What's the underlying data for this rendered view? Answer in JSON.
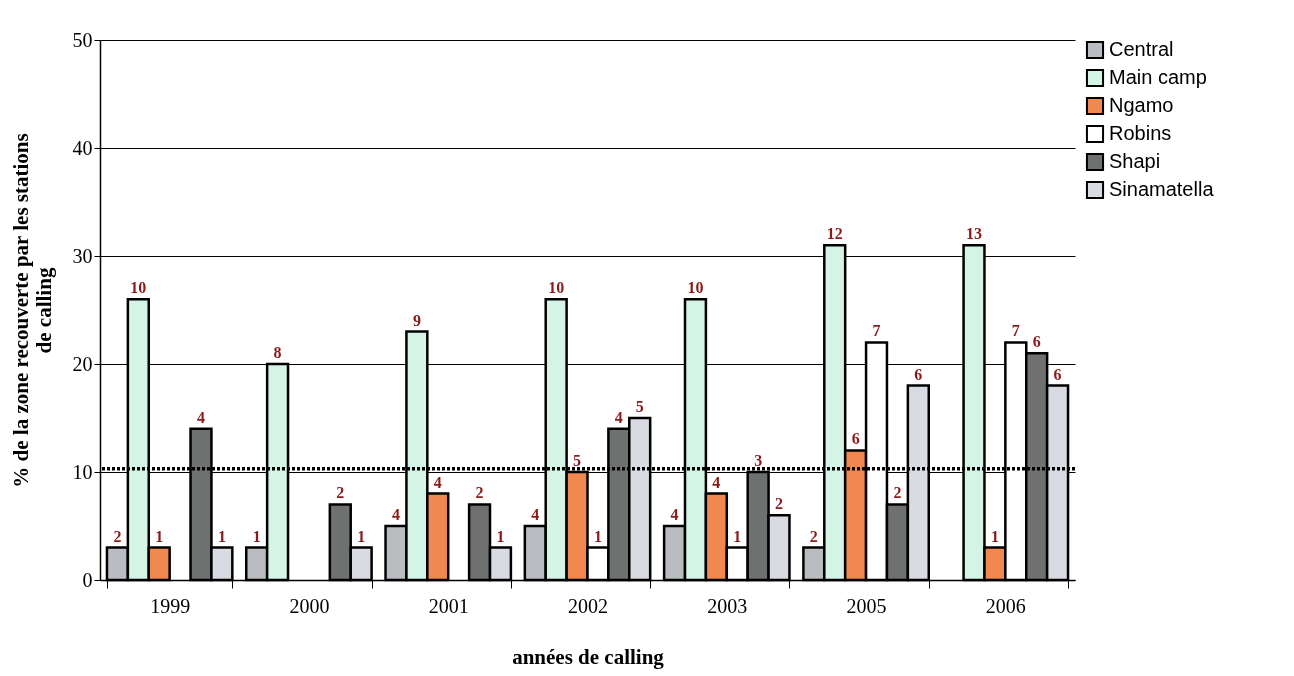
{
  "chart_data": {
    "type": "bar",
    "xlabel": "années de calling",
    "ylabel": "% de la zone recouverte par les stations de calling",
    "categories": [
      "1999",
      "2000",
      "2001",
      "2002",
      "2003",
      "2005",
      "2006"
    ],
    "series": [
      {
        "name": "Central",
        "color": "#b9bdc2",
        "values": [
          3,
          3,
          5,
          5,
          5,
          3,
          null
        ]
      },
      {
        "name": "Main camp",
        "color": "#d4f4e6",
        "values": [
          26,
          20,
          23,
          26,
          26,
          31,
          31
        ]
      },
      {
        "name": "Ngamo",
        "color": "#f0884f",
        "values": [
          3,
          null,
          8,
          10,
          8,
          12,
          3
        ]
      },
      {
        "name": "Robins",
        "color": "#ffffff",
        "values": [
          null,
          null,
          null,
          3,
          3,
          22,
          22
        ]
      },
      {
        "name": "Shapi",
        "color": "#6f7070",
        "values": [
          14,
          7,
          7,
          14,
          10,
          7,
          21
        ]
      },
      {
        "name": "Sinamatella",
        "color": "#d8dbe2",
        "values": [
          3,
          3,
          3,
          15,
          6,
          18,
          18
        ]
      }
    ],
    "annotations": [
      "2",
      "1",
      "4",
      "4",
      "4",
      "2",
      "10",
      "8",
      "9",
      "10",
      "10",
      "12",
      "13",
      "1",
      "4",
      "5",
      "4",
      "6",
      "1",
      "1",
      "1",
      "7",
      "7",
      "4",
      "2",
      "2",
      "4",
      "3",
      "2",
      "6",
      "1",
      "1",
      "1",
      "5",
      "2",
      "6",
      "6"
    ],
    "ylim": [
      0,
      50
    ],
    "yticks": [
      0,
      10,
      20,
      30,
      40,
      50
    ],
    "grid": "y",
    "legend": "top right",
    "ref_lines": [
      {
        "axis": "y",
        "value": 10.3,
        "line_style": "dotted"
      }
    ]
  }
}
